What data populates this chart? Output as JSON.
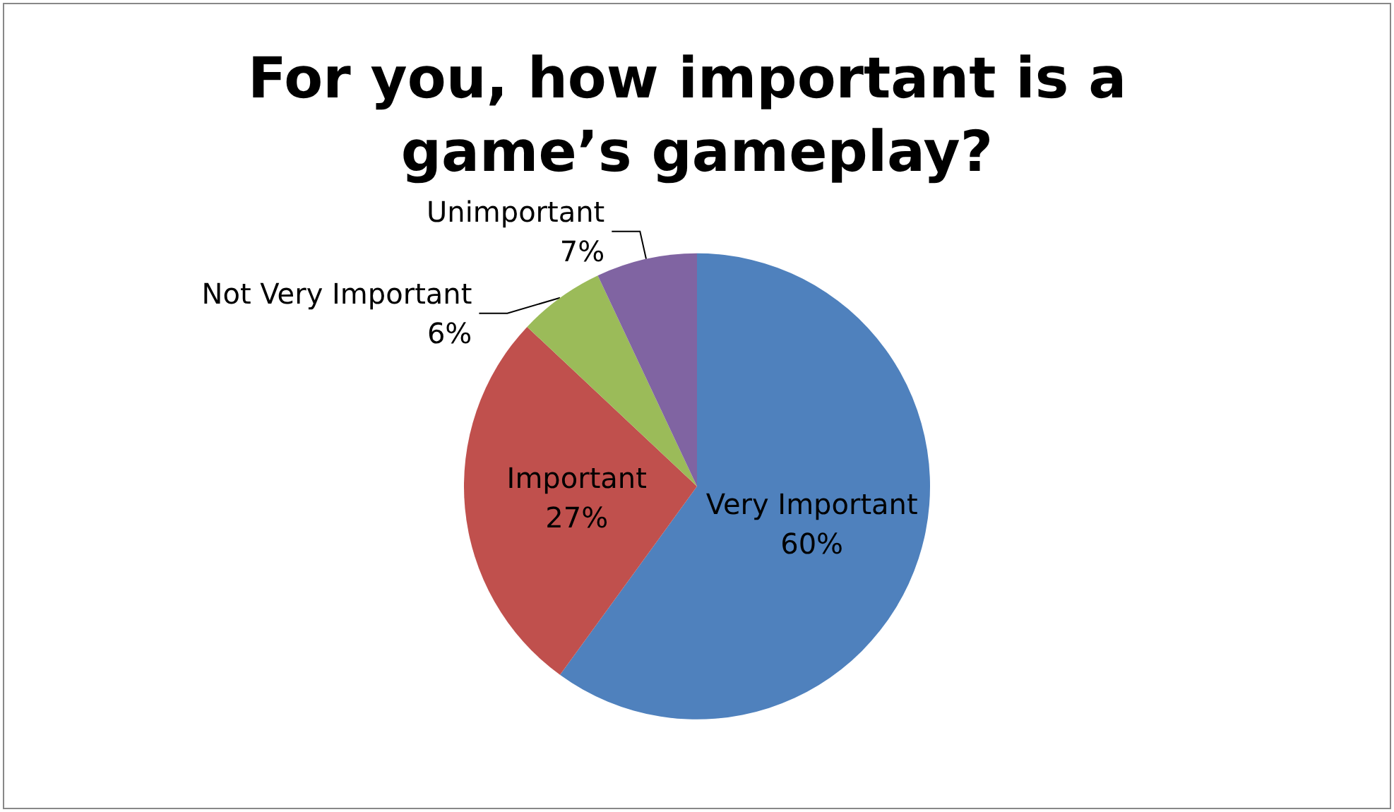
{
  "chart_data": {
    "type": "pie",
    "title": "For you, how important is a game’s gameplay?",
    "categories": [
      "Very Important",
      "Important",
      "Not Very Important",
      "Unimportant"
    ],
    "values": [
      60,
      27,
      6,
      7
    ],
    "colors": [
      "#4f81bd",
      "#c0504d",
      "#9bbb59",
      "#8064a2"
    ],
    "value_labels": [
      "60%",
      "27%",
      "6%",
      "7%"
    ],
    "legend": false
  }
}
